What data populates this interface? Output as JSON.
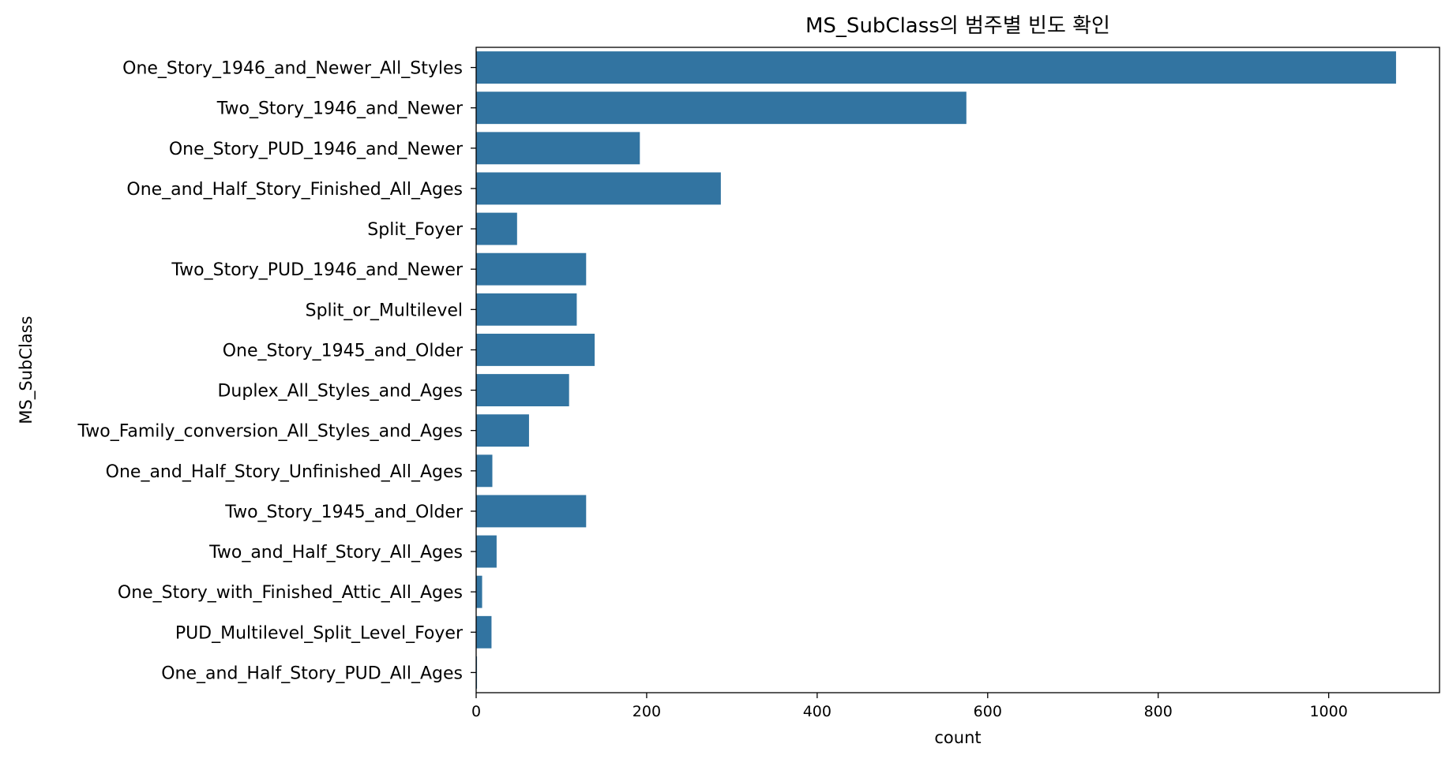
{
  "chart_data": {
    "type": "bar",
    "orientation": "horizontal",
    "title": "MS_SubClass의 범주별 빈도 확인",
    "xlabel": "count",
    "ylabel": "MS_SubClass",
    "xlim": [
      0,
      1130
    ],
    "xticks": [
      0,
      200,
      400,
      600,
      800,
      1000
    ],
    "grid": false,
    "bar_color": "#3274a1",
    "categories": [
      "One_Story_1946_and_Newer_All_Styles",
      "Two_Story_1946_and_Newer",
      "One_Story_PUD_1946_and_Newer",
      "One_and_Half_Story_Finished_All_Ages",
      "Split_Foyer",
      "Two_Story_PUD_1946_and_Newer",
      "Split_or_Multilevel",
      "One_Story_1945_and_Older",
      "Duplex_All_Styles_and_Ages",
      "Two_Family_conversion_All_Styles_and_Ages",
      "One_and_Half_Story_Unfinished_All_Ages",
      "Two_Story_1945_and_Older",
      "Two_and_Half_Story_All_Ages",
      "One_Story_with_Finished_Attic_All_Ages",
      "PUD_Multilevel_Split_Level_Foyer",
      "One_and_Half_Story_PUD_All_Ages"
    ],
    "values": [
      1079,
      575,
      192,
      287,
      48,
      129,
      118,
      139,
      109,
      62,
      19,
      129,
      24,
      7,
      18,
      1
    ]
  }
}
